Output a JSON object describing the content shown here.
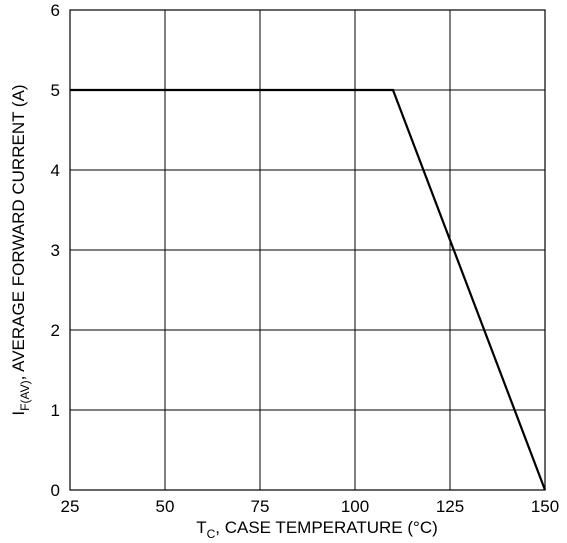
{
  "chart_data": {
    "type": "line",
    "title": "",
    "xlabel": {
      "main": "T",
      "sub": "C",
      "rest": ", CASE TEMPERATURE (°C)"
    },
    "ylabel": {
      "main": "I",
      "sub": "F(AV)",
      "rest": ", AVERAGE FORWARD CURRENT (A)"
    },
    "xlim": [
      25,
      150
    ],
    "ylim": [
      0,
      6
    ],
    "xticks": [
      25,
      50,
      75,
      100,
      125,
      150
    ],
    "yticks": [
      0,
      1,
      2,
      3,
      4,
      5,
      6
    ],
    "grid": true,
    "series": [
      {
        "x": [
          25,
          110,
          150
        ],
        "y": [
          5,
          5,
          0
        ]
      }
    ]
  },
  "colors": {
    "line": "#000000",
    "grid": "#000000"
  }
}
